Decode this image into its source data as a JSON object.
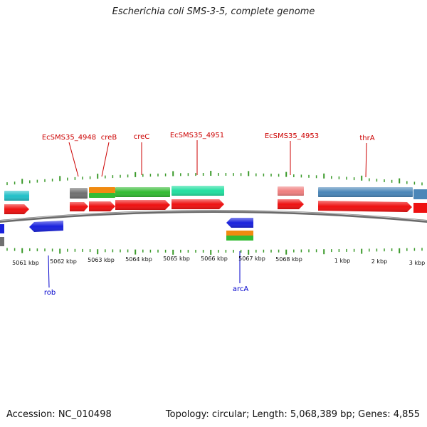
{
  "title": "Escherichia coli SMS-3-5, complete genome",
  "footer": {
    "accession": "Accession: NC_010498",
    "summary": "Topology: circular; Length: 5,068,389 bp; Genes: 4,855"
  },
  "colors": {
    "backbone": "#8c8c8c",
    "tick": "#3a9a2a",
    "top_label": "#cc0000",
    "bottom_label": "#0000cc",
    "cds": "#ee1111"
  },
  "kbp_labels": [
    "5061 kbp",
    "5062 kbp",
    "5063 kbp",
    "5064 kbp",
    "5065 kbp",
    "5066 kbp",
    "5067 kbp",
    "5068 kbp",
    "1 kbp",
    "2 kbp",
    "3 kbp"
  ],
  "top_labels": [
    {
      "name": "EcSMS35_4948"
    },
    {
      "name": "creB"
    },
    {
      "name": "creC"
    },
    {
      "name": "EcSMS35_4951"
    },
    {
      "name": "EcSMS35_4953"
    },
    {
      "name": "thrA"
    }
  ],
  "bottom_labels": [
    {
      "name": "rob"
    },
    {
      "name": "arcA"
    }
  ],
  "features": {
    "top_colored": [
      {
        "color": "#22c0c8"
      },
      {
        "color": "#707070"
      },
      {
        "color": "#f08a10"
      },
      {
        "color": "#33bb33"
      },
      {
        "color": "#22e0a0"
      },
      {
        "color": "#f08080"
      },
      {
        "color": "#4a86b8"
      },
      {
        "color": "#4a86b8"
      }
    ],
    "top_cds_count": 9,
    "bottom_blue_count": 3,
    "bottom_stack": [
      {
        "color": "#f08a10"
      },
      {
        "color": "#33bb33"
      }
    ],
    "bottom_gray_color": "#707070",
    "blue_color": "#1a22dd"
  }
}
